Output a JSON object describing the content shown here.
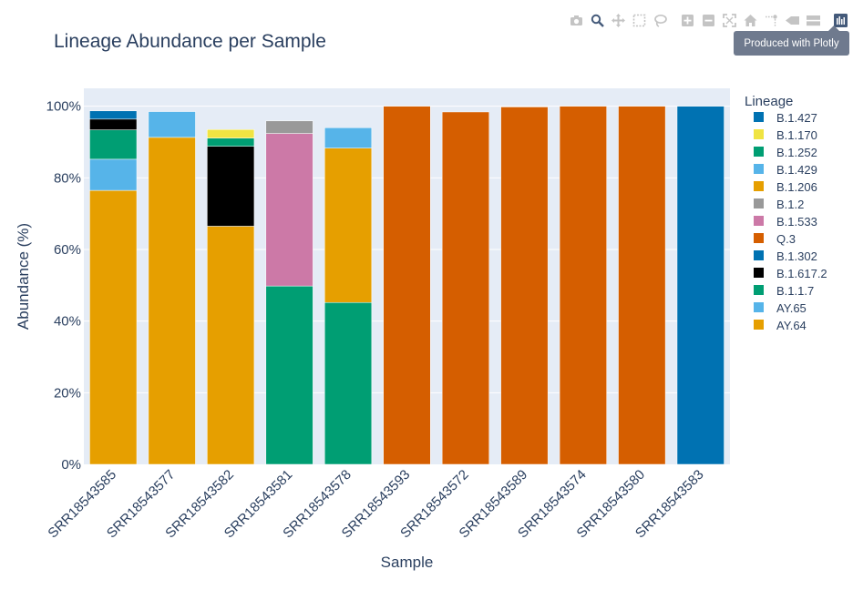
{
  "chart_data": {
    "type": "bar",
    "barmode": "stack",
    "title": "Lineage Abundance per Sample",
    "xlabel": "Sample",
    "ylabel": "Abundance (%)",
    "ylim": [
      0,
      105
    ],
    "yticks": [
      0,
      20,
      40,
      60,
      80,
      100
    ],
    "ytick_labels": [
      "0%",
      "20%",
      "40%",
      "60%",
      "80%",
      "100%"
    ],
    "grid": true,
    "legend_title": "Lineage",
    "legend_position": "right",
    "categories": [
      "SRR18543585",
      "SRR18543577",
      "SRR18543582",
      "SRR18543581",
      "SRR18543578",
      "SRR18543593",
      "SRR18543572",
      "SRR18543589",
      "SRR18543574",
      "SRR18543580",
      "SRR18543583"
    ],
    "series": [
      {
        "name": "AY.64",
        "color": "#E69F00",
        "values": [
          76.5,
          0,
          0,
          0,
          0,
          0,
          0,
          0,
          0,
          0,
          0
        ]
      },
      {
        "name": "AY.65",
        "color": "#56B4E9",
        "values": [
          8.7,
          0,
          0,
          0,
          0,
          0,
          0,
          0,
          0,
          0,
          0
        ]
      },
      {
        "name": "B.1.1.7",
        "color": "#009E73",
        "values": [
          8.2,
          0,
          2.3,
          49.8,
          45.2,
          0,
          0,
          0,
          0,
          0,
          0
        ]
      },
      {
        "name": "B.1.617.2",
        "color": "#000000",
        "values": [
          3.0,
          0,
          22.3,
          0,
          0,
          0,
          0,
          0,
          0,
          0,
          0
        ]
      },
      {
        "name": "B.1.302",
        "color": "#0072B2",
        "values": [
          2.3,
          0,
          0,
          0,
          0,
          0,
          0,
          0,
          0,
          0,
          0
        ]
      },
      {
        "name": "Q.3",
        "color": "#D55E00",
        "values": [
          0,
          0,
          0,
          0,
          0,
          100,
          98.4,
          99.8,
          100,
          100,
          0
        ]
      },
      {
        "name": "B.1.533",
        "color": "#CC79A7",
        "values": [
          0,
          0,
          0,
          42.6,
          0,
          0,
          0,
          0,
          0,
          0,
          0
        ]
      },
      {
        "name": "B.1.2",
        "color": "#999999",
        "values": [
          0,
          0,
          0,
          3.5,
          0,
          0,
          0,
          0,
          0,
          0,
          0
        ]
      },
      {
        "name": "B.1.206",
        "color": "#E69F00",
        "values": [
          0,
          91.3,
          66.5,
          0,
          43.1,
          0,
          0,
          0,
          0,
          0,
          0
        ]
      },
      {
        "name": "B.1.429",
        "color": "#56B4E9",
        "values": [
          0,
          7.2,
          0,
          0,
          5.7,
          0,
          0,
          0,
          0,
          0,
          0
        ]
      },
      {
        "name": "B.1.252",
        "color": "#009E73",
        "values": [
          0,
          0,
          0,
          0,
          0,
          0,
          0,
          0,
          0,
          0,
          0
        ]
      },
      {
        "name": "B.1.170",
        "color": "#F0E442",
        "values": [
          0,
          0,
          2.4,
          0,
          0,
          0,
          0,
          0,
          0,
          0,
          0
        ]
      },
      {
        "name": "B.1.427",
        "color": "#0072B2",
        "values": [
          0,
          0,
          0,
          0,
          0,
          0,
          0,
          0,
          0,
          0,
          100
        ]
      }
    ],
    "stack_order": [
      [
        "AY.64",
        "AY.65",
        "B.1.1.7",
        "B.1.617.2",
        "B.1.302"
      ],
      [
        "B.1.206",
        "B.1.429"
      ],
      [
        "B.1.206",
        "B.1.617.2",
        "B.1.1.7",
        "B.1.170"
      ],
      [
        "B.1.1.7",
        "B.1.533",
        "B.1.2"
      ],
      [
        "B.1.1.7",
        "B.1.206",
        "B.1.429"
      ],
      [
        "Q.3"
      ],
      [
        "Q.3"
      ],
      [
        "Q.3"
      ],
      [
        "Q.3"
      ],
      [
        "Q.3"
      ],
      [
        "B.1.427"
      ]
    ],
    "legend_order": [
      "B.1.427",
      "B.1.170",
      "B.1.252",
      "B.1.429",
      "B.1.206",
      "B.1.2",
      "B.1.533",
      "Q.3",
      "B.1.302",
      "B.1.617.2",
      "B.1.1.7",
      "AY.65",
      "AY.64"
    ]
  },
  "colors": {
    "plot_bg": "#E5ECF6",
    "grid": "#ffffff",
    "text": "#2a3f5f",
    "modebar_icon": "#c4c4c4",
    "modebar_active": "#445a7a"
  },
  "modebar": {
    "tooltip": "Produced with Plotly",
    "buttons": [
      {
        "name": "camera-icon",
        "active": false
      },
      {
        "name": "zoom-icon",
        "active": true
      },
      {
        "name": "pan-icon",
        "active": false
      },
      {
        "name": "box-select-icon",
        "active": false
      },
      {
        "name": "lasso-select-icon",
        "active": false
      },
      {
        "name": "zoom-in-icon",
        "active": false
      },
      {
        "name": "zoom-out-icon",
        "active": false
      },
      {
        "name": "autoscale-icon",
        "active": false
      },
      {
        "name": "reset-axes-icon",
        "active": false
      },
      {
        "name": "toggle-spike-lines-icon",
        "active": false
      },
      {
        "name": "hover-closest-icon",
        "active": false
      },
      {
        "name": "hover-compare-icon",
        "active": false
      },
      {
        "name": "plotly-logo-icon",
        "active": false
      }
    ]
  }
}
